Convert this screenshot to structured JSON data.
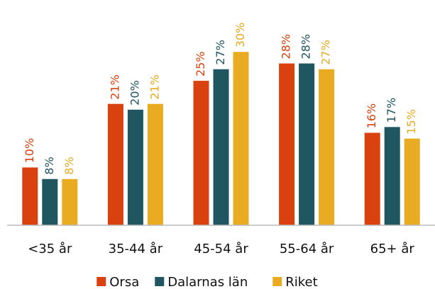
{
  "chart_data": {
    "type": "bar",
    "categories": [
      "<35 år",
      "35-44 år",
      "45-54 år",
      "55-64 år",
      "65+ år"
    ],
    "series": [
      {
        "name": "Orsa",
        "color": "#d9410f",
        "values": [
          10,
          21,
          25,
          28,
          16
        ],
        "value_labels": [
          "10%",
          "21%",
          "25%",
          "28%",
          "16%"
        ]
      },
      {
        "name": "Dalarnas län",
        "color": "#1f5660",
        "values": [
          8,
          20,
          27,
          28,
          17
        ],
        "value_labels": [
          "8%",
          "20%",
          "27%",
          "28%",
          "17%"
        ]
      },
      {
        "name": "Riket",
        "color": "#e8ab22",
        "values": [
          8,
          21,
          30,
          27,
          15
        ],
        "value_labels": [
          "8%",
          "21%",
          "30%",
          "27%",
          "15%"
        ]
      }
    ],
    "ylim": [
      0,
      38
    ],
    "legend": "bottom"
  }
}
